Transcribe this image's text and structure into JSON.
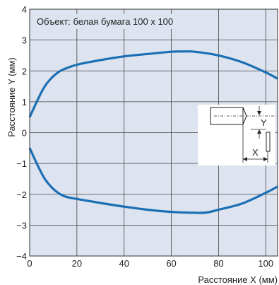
{
  "chart_data": {
    "type": "line",
    "annotation": "Объект: белая бумага 100 x 100",
    "xlabel": "Расстояние X (мм)",
    "ylabel": "Расстояние Y (мм)",
    "xlim": [
      0,
      105
    ],
    "ylim": [
      -4,
      4
    ],
    "x_ticks": [
      0,
      20,
      40,
      60,
      80,
      100
    ],
    "y_ticks": [
      -4,
      -3,
      -2,
      -1,
      0,
      1,
      2,
      3,
      4
    ],
    "x_tick_labels": [
      "0",
      "20",
      "40",
      "60",
      "80",
      "100"
    ],
    "y_tick_labels": [
      "−4",
      "−3",
      "−2",
      "−1",
      "0",
      "1",
      "2",
      "3",
      "4"
    ],
    "grid": true,
    "background_color": "#dde3ef",
    "line_color": "#1a6fb5",
    "series": [
      {
        "x": [
          0,
          3,
          6,
          9,
          12,
          15,
          20,
          30,
          40,
          50,
          60,
          65,
          70,
          80,
          90,
          100,
          105
        ],
        "y": [
          0.5,
          1.0,
          1.45,
          1.75,
          1.95,
          2.07,
          2.2,
          2.35,
          2.47,
          2.55,
          2.62,
          2.63,
          2.62,
          2.5,
          2.28,
          1.95,
          1.75
        ]
      },
      {
        "x": [
          0,
          3,
          6,
          9,
          12,
          15,
          20,
          30,
          40,
          50,
          60,
          70,
          75,
          80,
          90,
          100,
          105
        ],
        "y": [
          -0.5,
          -1.0,
          -1.45,
          -1.75,
          -1.95,
          -2.07,
          -2.15,
          -2.28,
          -2.4,
          -2.5,
          -2.57,
          -2.6,
          -2.59,
          -2.5,
          -2.3,
          -1.95,
          -1.75
        ]
      }
    ],
    "inset": {
      "x_label": "X",
      "y_label": "Y"
    }
  }
}
